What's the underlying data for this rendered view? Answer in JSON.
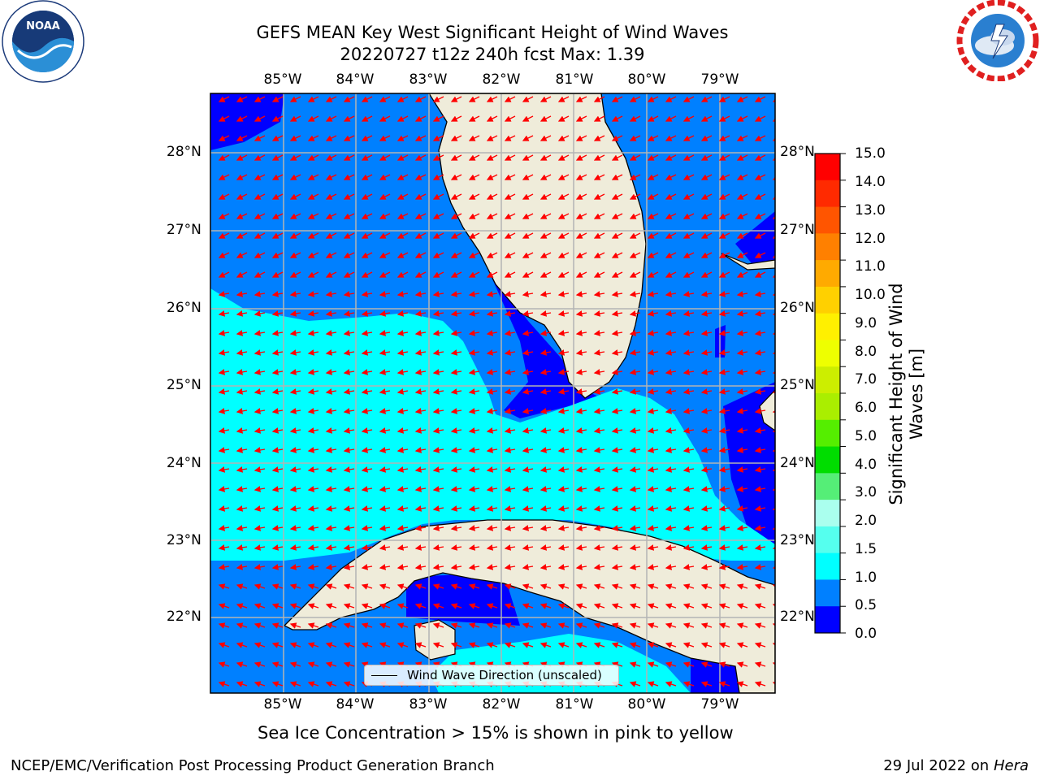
{
  "title_line1": "GEFS MEAN Key West Significant Height of Wind Waves",
  "title_line2": "20220727 t12z 240h fcst   Max: 1.39",
  "lon_labels": [
    "85°W",
    "84°W",
    "83°W",
    "82°W",
    "81°W",
    "80°W",
    "79°W"
  ],
  "lat_labels": [
    "28°N",
    "27°N",
    "26°N",
    "25°N",
    "24°N",
    "23°N",
    "22°N"
  ],
  "legend_label": "Wind Wave Direction (unscaled)",
  "colorbar": {
    "title": "Significant Height of Wind Waves [m]",
    "ticks": [
      "15.0",
      "14.0",
      "13.0",
      "12.0",
      "11.0",
      "10.0",
      "9.0",
      "8.0",
      "7.0",
      "6.0",
      "5.0",
      "4.0",
      "3.0",
      "2.0",
      "1.5",
      "1.0",
      "0.5",
      "0.0"
    ],
    "colors_top_to_bottom": [
      "#ff0000",
      "#ff2a00",
      "#ff5500",
      "#ff8000",
      "#ffaa00",
      "#ffd000",
      "#fff000",
      "#eeff00",
      "#ccee00",
      "#aaee00",
      "#55ee00",
      "#00dd00",
      "#55ee77",
      "#aaffee",
      "#55ffee",
      "#00ffff",
      "#0080ff",
      "#0000ff"
    ]
  },
  "subtitle": "Sea Ice Concentration > 15% is shown in pink to yellow",
  "footer_left": "NCEP/EMC/Verification Post Processing Product Generation Branch",
  "footer_right_date": "29 Jul 2022 on ",
  "footer_right_host": "Hera",
  "colors": {
    "land": "#efecda",
    "arrow": "#ff0000",
    "grid": "#b4b4b4",
    "wave_0_05": "#0000ff",
    "wave_05_10": "#0080ff",
    "wave_10_15": "#00ffff"
  }
}
